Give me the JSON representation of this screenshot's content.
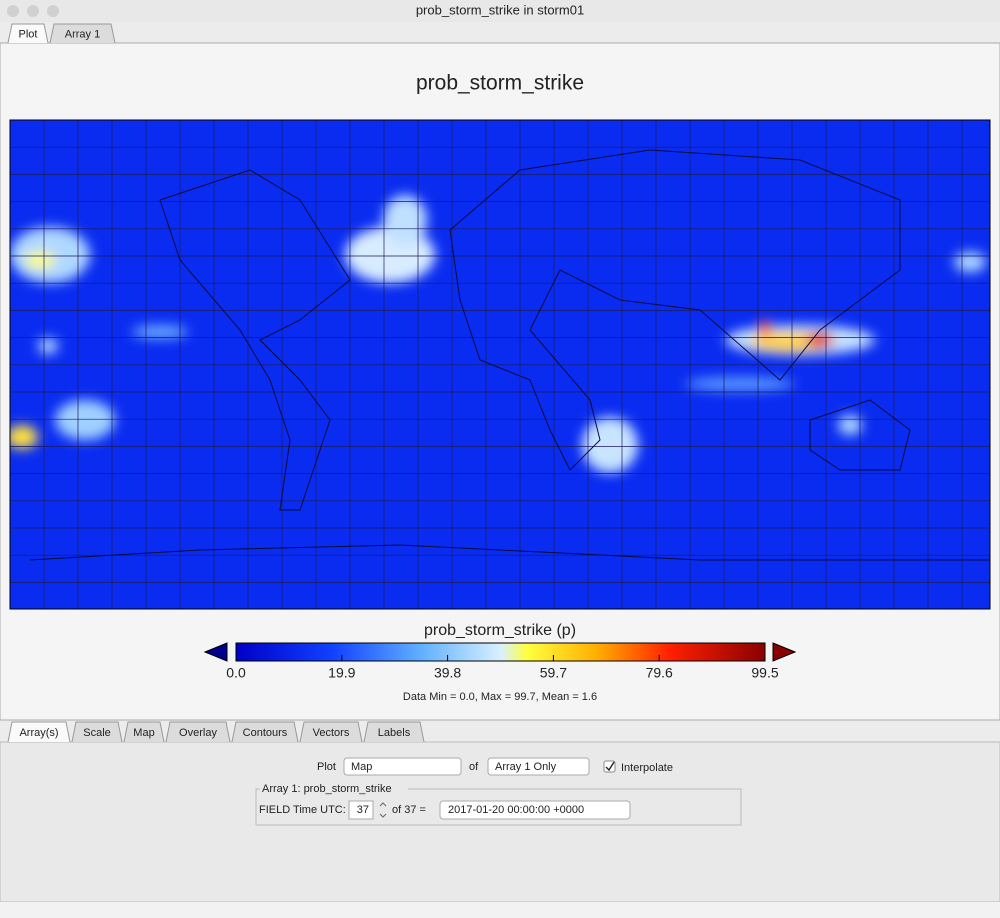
{
  "window": {
    "title": "prob_storm_strike in storm01",
    "tabs": [
      "Plot",
      "Array 1"
    ]
  },
  "plot": {
    "title": "prob_storm_strike",
    "colorbar": {
      "label": "prob_storm_strike (p)",
      "lim": [
        0,
        99.5
      ],
      "ticks": [
        {
          "value": 0,
          "label": "0.0"
        },
        19.9,
        39.8,
        59.7,
        79.6,
        99.5
      ]
    },
    "stats": "Data Min = 0.0, Max = 99.7, Mean = 1.6"
  },
  "controls": {
    "tabs": [
      "Array(s)",
      "Scale",
      "Map",
      "Overlay",
      "Contours",
      "Vectors",
      "Labels"
    ],
    "plot_label": "Plot",
    "plot_value": "Map",
    "of_label": "of",
    "array_value": "Array 1 Only",
    "interpolate": "Interpolate",
    "group_title": "Array 1: prob_storm_strike",
    "field_label": "FIELD Time UTC:",
    "index": "37",
    "of_total": "of 37 =",
    "time": "2017-01-20 00:00:00 +0000"
  }
}
